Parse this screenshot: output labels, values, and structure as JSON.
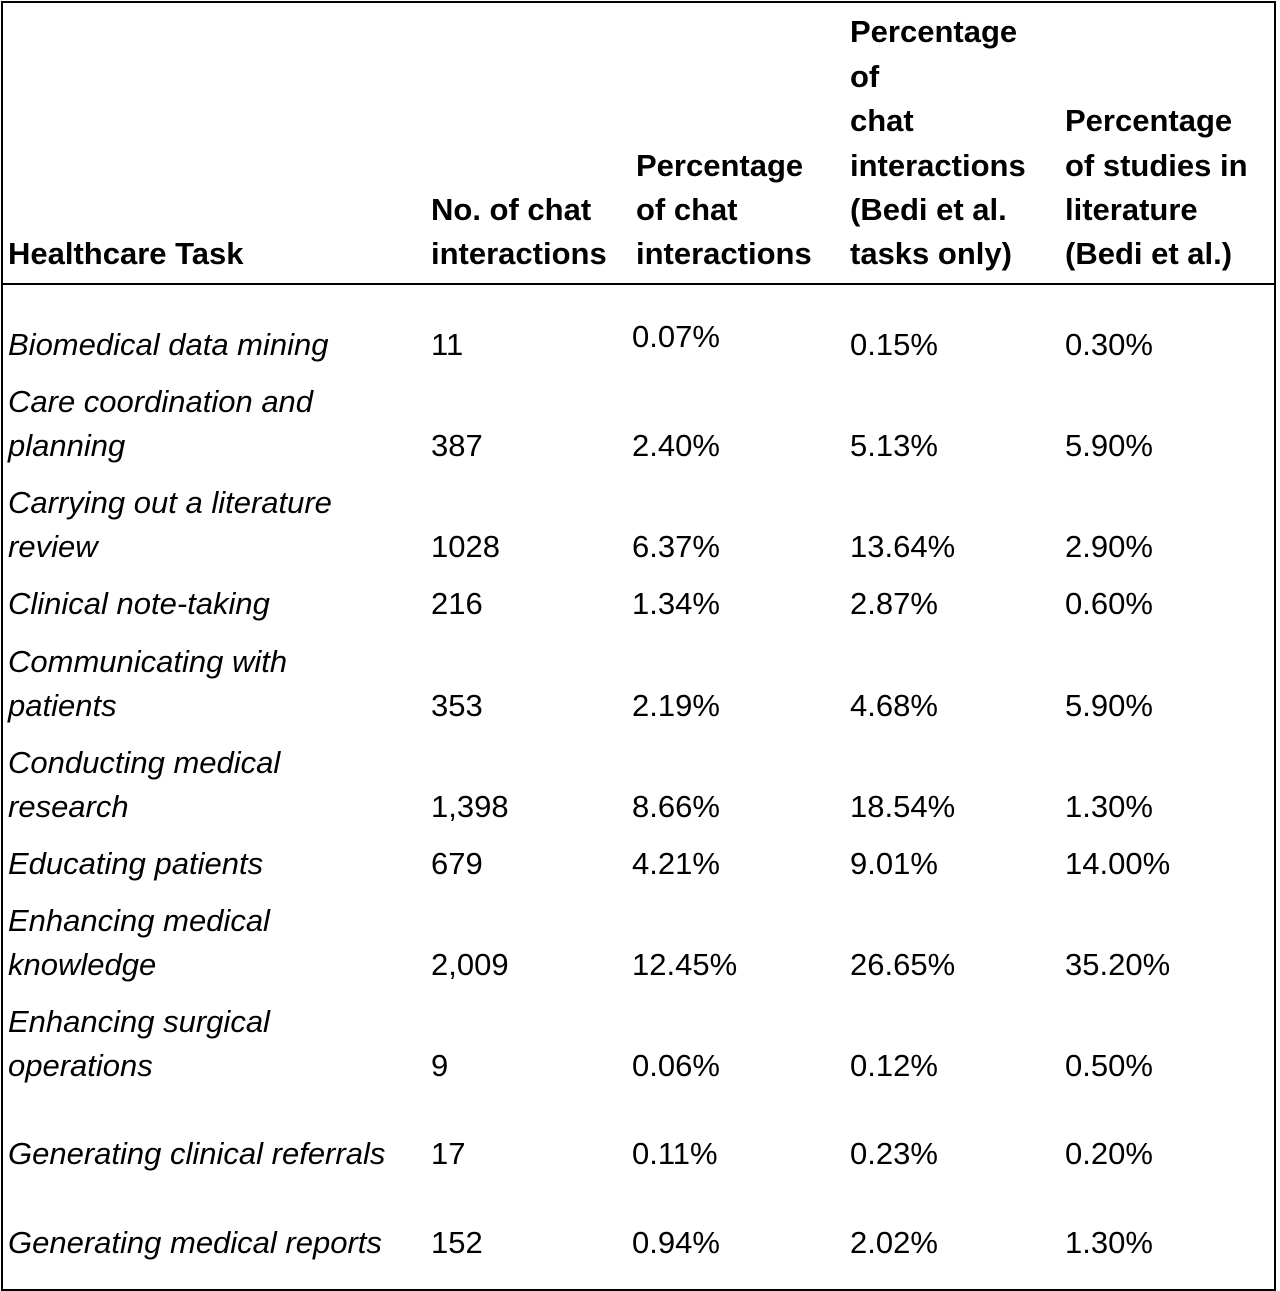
{
  "table": {
    "headers": [
      {
        "lines": [
          "Healthcare Task"
        ]
      },
      {
        "lines": [
          "No. of chat",
          "interactions"
        ]
      },
      {
        "lines": [
          "Percentage",
          "of chat",
          "interactions"
        ]
      },
      {
        "lines": [
          "Percentage",
          "of",
          "chat",
          "interactions",
          "(Bedi et al.",
          "tasks only)"
        ]
      },
      {
        "lines": [
          "Percentage",
          "of studies in",
          "literature",
          "(Bedi et al.)"
        ]
      }
    ],
    "rows": [
      {
        "task": [
          "Biomedical data mining"
        ],
        "count": "11",
        "pct": "0.07%",
        "pct_bedi": "0.15%",
        "pct_lit": "0.30%"
      },
      {
        "task": [
          "Care coordination and",
          "planning"
        ],
        "count": "387",
        "pct": "2.40%",
        "pct_bedi": "5.13%",
        "pct_lit": "5.90%"
      },
      {
        "task": [
          "Carrying out a literature",
          "review"
        ],
        "count": "1028",
        "pct": "6.37%",
        "pct_bedi": "13.64%",
        "pct_lit": "2.90%"
      },
      {
        "task": [
          "Clinical note-taking"
        ],
        "count": "216",
        "pct": "1.34%",
        "pct_bedi": "2.87%",
        "pct_lit": "0.60%"
      },
      {
        "task": [
          "Communicating with",
          "patients"
        ],
        "count": "353",
        "pct": "2.19%",
        "pct_bedi": "4.68%",
        "pct_lit": "5.90%"
      },
      {
        "task": [
          "Conducting medical",
          "research"
        ],
        "count": "1,398",
        "pct": "8.66%",
        "pct_bedi": "18.54%",
        "pct_lit": "1.30%"
      },
      {
        "task": [
          "Educating patients"
        ],
        "count": "679",
        "pct": "4.21%",
        "pct_bedi": "9.01%",
        "pct_lit": "14.00%"
      },
      {
        "task": [
          "Enhancing medical",
          "knowledge"
        ],
        "count": "2,009",
        "pct": "12.45%",
        "pct_bedi": "26.65%",
        "pct_lit": "35.20%"
      },
      {
        "task": [
          "Enhancing surgical",
          "operations"
        ],
        "count": "9",
        "pct": "0.06%",
        "pct_bedi": "0.12%",
        "pct_lit": "0.50%"
      },
      {
        "task": [
          "Generating clinical referrals"
        ],
        "count": "17",
        "pct": "0.11%",
        "pct_bedi": "0.23%",
        "pct_lit": "0.20%"
      },
      {
        "task": [
          "Generating medical reports"
        ],
        "count": "152",
        "pct": "0.94%",
        "pct_bedi": "2.02%",
        "pct_lit": "1.30%"
      }
    ]
  }
}
